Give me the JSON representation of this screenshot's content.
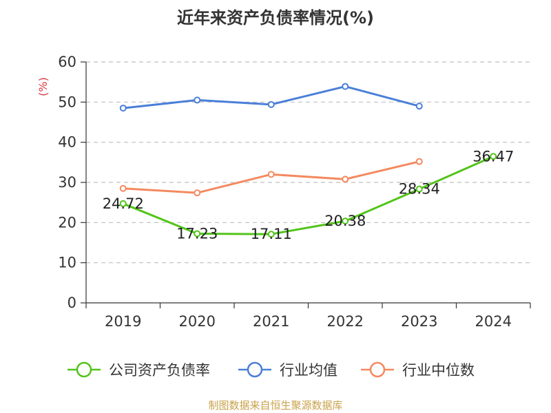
{
  "chart_data": {
    "type": "line",
    "title": "近年来资产负债率情况(%)",
    "ylabel": "(%)",
    "xlabel": "",
    "ylim": [
      0,
      60
    ],
    "yticks": [
      0,
      10,
      20,
      30,
      40,
      50,
      60
    ],
    "categories": [
      "2019",
      "2020",
      "2021",
      "2022",
      "2023",
      "2024"
    ],
    "grid": true,
    "legend_position": "bottom",
    "series": [
      {
        "name": "公司资产负债率",
        "color": "#52c41a",
        "values": [
          24.72,
          17.23,
          17.11,
          20.38,
          28.34,
          36.47
        ],
        "labels": [
          "24.72",
          "17.23",
          "17.11",
          "20.38",
          "28.34",
          "36.47"
        ]
      },
      {
        "name": "行业均值",
        "color": "#4a7fd8",
        "values": [
          48.5,
          50.5,
          49.4,
          53.9,
          49.0,
          null
        ]
      },
      {
        "name": "行业中位数",
        "color": "#f4895f",
        "values": [
          28.5,
          27.4,
          32.0,
          30.8,
          35.2,
          null
        ]
      }
    ],
    "source": "制图数据来自恒生聚源数据库"
  },
  "colors": {
    "axis": "#333333",
    "grid": "#bfbfbf",
    "ylabel": "#d9363e",
    "source": "#c8a24a"
  }
}
